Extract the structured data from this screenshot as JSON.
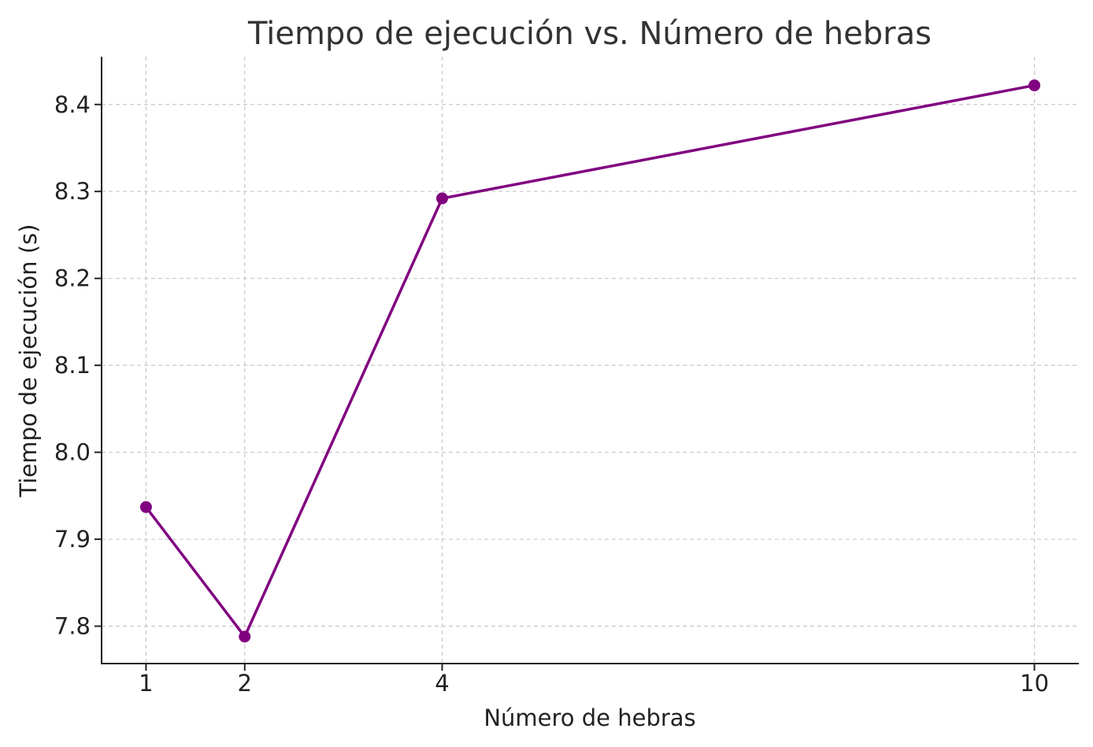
{
  "chart_data": {
    "type": "line",
    "title": "Tiempo de ejecución vs. Número de hebras",
    "xlabel": "Número de hebras",
    "ylabel": "Tiempo de ejecución (s)",
    "x": [
      1,
      2,
      4,
      10
    ],
    "x_ticks": [
      "1",
      "2",
      "4",
      "10"
    ],
    "y_ticks": [
      "7.8",
      "7.9",
      "8.0",
      "8.1",
      "8.2",
      "8.3",
      "8.4"
    ],
    "xlim": [
      0.55,
      10.45
    ],
    "ylim": [
      7.757,
      8.455
    ],
    "grid": true,
    "series": [
      {
        "values": [
          7.937,
          7.788,
          8.292,
          8.422
        ],
        "color": "#800080",
        "marker": "circle"
      }
    ]
  }
}
